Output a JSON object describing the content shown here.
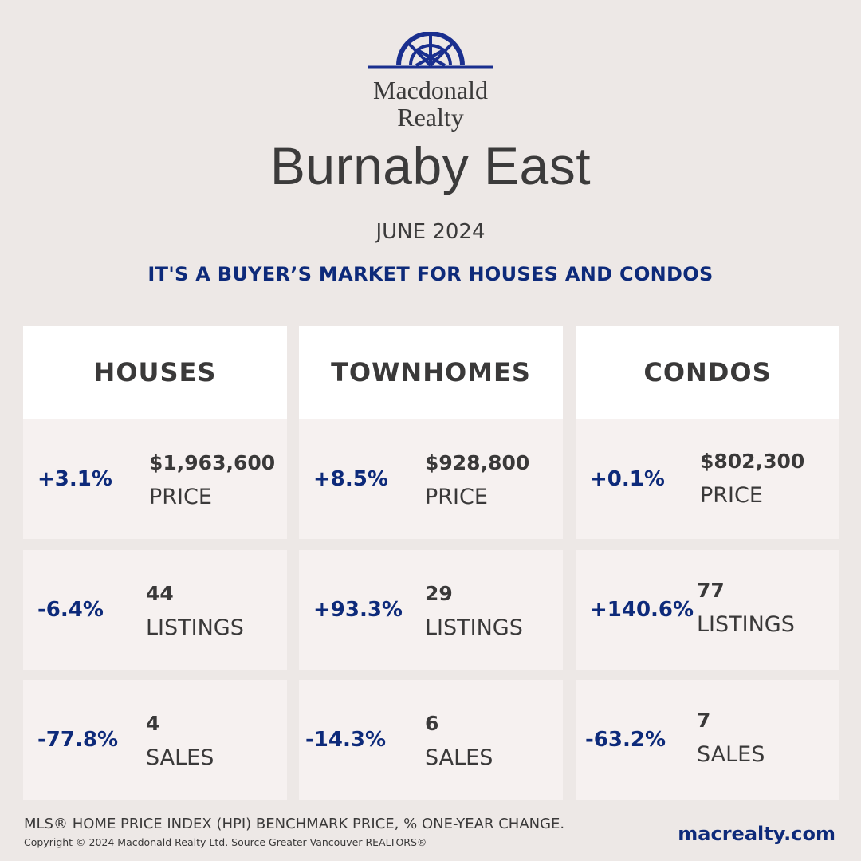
{
  "brand": {
    "name_line1": "Macdonald",
    "name_line2": "Realty",
    "logo_icon": "sunburst-arch-logo",
    "logo_color": "#1a2f8f"
  },
  "title": "Burnaby East",
  "date": "JUNE 2024",
  "headline": "IT'S A BUYER’S MARKET FOR HOUSES AND CONDOS",
  "accent_color": "#0d2a7a",
  "columns": [
    {
      "title": "HOUSES",
      "rows": [
        {
          "change": "+3.1%",
          "value": "$1,963,600",
          "label": "PRICE"
        },
        {
          "change": "-6.4%",
          "value": "44",
          "label": "LISTINGS"
        },
        {
          "change": "-77.8%",
          "value": "4",
          "label": "SALES"
        }
      ]
    },
    {
      "title": "TOWNHOMES",
      "rows": [
        {
          "change": "+8.5%",
          "value": "$928,800",
          "label": "PRICE"
        },
        {
          "change": "+93.3%",
          "value": "29",
          "label": "LISTINGS"
        },
        {
          "change": "-14.3%",
          "value": "6",
          "label": "SALES"
        }
      ]
    },
    {
      "title": "CONDOS",
      "rows": [
        {
          "change": "+0.1%",
          "value": "$802,300",
          "label": "PRICE"
        },
        {
          "change": "+140.6%",
          "value": "77",
          "label": "LISTINGS"
        },
        {
          "change": "-63.2%",
          "value": "7",
          "label": "SALES"
        }
      ]
    }
  ],
  "footer": {
    "note": "MLS® HOME PRICE INDEX (HPI) BENCHMARK PRICE, % ONE-YEAR CHANGE.",
    "copyright": "Copyright © 2024 Macdonald Realty Ltd. Source Greater Vancouver REALTORS®",
    "website": "macrealty.com"
  }
}
